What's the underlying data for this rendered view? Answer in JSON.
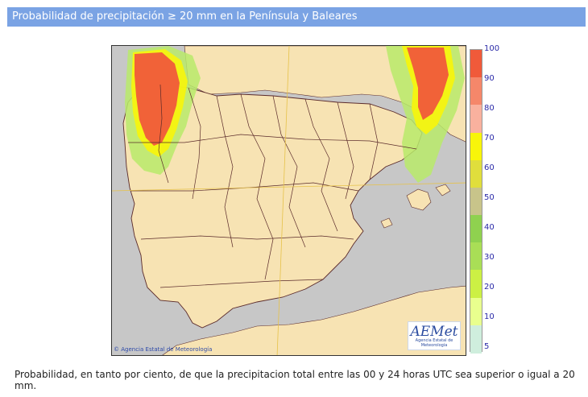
{
  "header": {
    "title": "Probabilidad de precipitación ≥ 20 mm en la Península y Baleares"
  },
  "map": {
    "credit": "Agencia Estatal de Meteorología",
    "logo_text": "AEMet",
    "logo_subtext": "Agencia Estatal de Meteorología",
    "colors": {
      "land": "#f7e3b3",
      "sea": "#c7c7c7",
      "borders": "#5a2a2a"
    }
  },
  "legend": {
    "labels": [
      "100",
      "90",
      "80",
      "70",
      "60",
      "50",
      "40",
      "30",
      "20",
      "10",
      "5"
    ],
    "colors": [
      "#f05a3a",
      "#f5876a",
      "#f9b19e",
      "#f8f50a",
      "#e0de3c",
      "#c8c48a",
      "#8fd14f",
      "#a9de56",
      "#ccf044",
      "#e9ff8e",
      "#cfeedd"
    ]
  },
  "caption": "Probabilidad, en tanto por ciento, de que la precipitacion total entre las 00 y 24 horas UTC sea superior o igual a 20 mm."
}
